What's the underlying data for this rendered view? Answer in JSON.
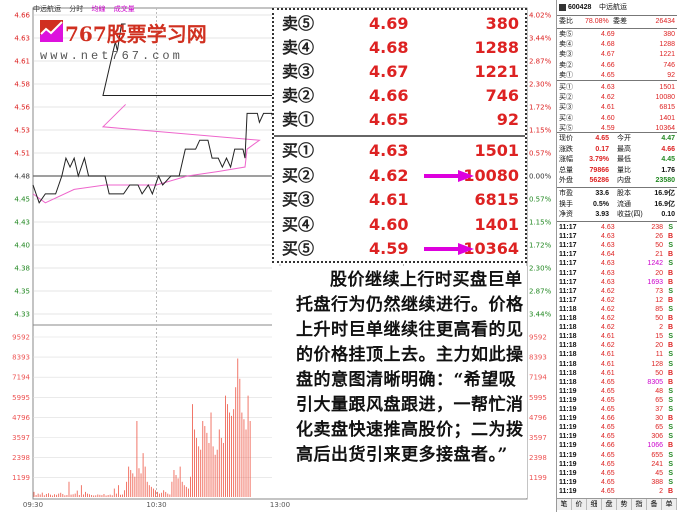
{
  "header": {
    "stock_name": "中远航运",
    "tabs": [
      "分时",
      "均線",
      "成交量"
    ]
  },
  "logo": {
    "name": "767股票学习网",
    "url": "www.net767.com"
  },
  "price_axis": {
    "left": [
      "4.66",
      "4.63",
      "4.61",
      "4.58",
      "4.56",
      "4.53",
      "4.51",
      "4.48",
      "4.45",
      "4.43",
      "4.40",
      "4.38",
      "4.35",
      "4.33"
    ],
    "right": [
      "4.02%",
      "3.44%",
      "2.87%",
      "2.30%",
      "1.72%",
      "1.15%",
      "0.57%",
      "0.00%",
      "0.57%",
      "1.15%",
      "1.72%",
      "2.30%",
      "2.87%",
      "3.44%"
    ]
  },
  "volume_axis": [
    "9592",
    "8393",
    "7194",
    "5995",
    "4796",
    "3597",
    "2398",
    "1199"
  ],
  "time_axis": [
    "09:30",
    "10:30",
    "13:00"
  ],
  "colors": {
    "price_line": "#222222",
    "avg_line": "#ee66cc",
    "up": "#dd2222",
    "down": "#228822",
    "arrow": "#dd00dd",
    "volume": "#ee5544"
  },
  "chart_data": {
    "type": "line",
    "x_range": [
      "09:30",
      "15:00"
    ],
    "ylim": [
      4.33,
      4.66
    ],
    "price": [
      [
        "09:30",
        4.47
      ],
      [
        "09:33",
        4.45
      ],
      [
        "09:36",
        4.46
      ],
      [
        "09:41",
        4.46
      ],
      [
        "09:44",
        4.48
      ],
      [
        "09:46",
        4.5
      ],
      [
        "09:48",
        4.49
      ],
      [
        "09:50",
        4.5
      ],
      [
        "09:52",
        4.48
      ],
      [
        "09:55",
        4.5
      ],
      [
        "09:57",
        4.48
      ],
      [
        "10:05",
        4.48
      ],
      [
        "10:07",
        4.46
      ],
      [
        "10:14",
        4.46
      ],
      [
        "10:17",
        4.47
      ],
      [
        "10:21",
        4.47
      ],
      [
        "10:23",
        4.46
      ],
      [
        "10:26",
        4.47
      ],
      [
        "10:28",
        4.46
      ],
      [
        "10:31",
        4.48
      ],
      [
        "10:33",
        4.47
      ],
      [
        "10:37",
        4.48
      ],
      [
        "10:41",
        4.48
      ],
      [
        "10:44",
        4.51
      ],
      [
        "10:49",
        4.51
      ],
      [
        "10:51",
        4.52
      ],
      [
        "10:55",
        4.52
      ],
      [
        "10:57",
        4.5
      ],
      [
        "11:00",
        4.5
      ],
      [
        "11:02",
        4.49
      ],
      [
        "11:04",
        4.5
      ],
      [
        "11:06",
        4.49
      ],
      [
        "11:08",
        4.51
      ],
      [
        "11:12",
        4.51
      ],
      [
        "11:13",
        4.5
      ],
      [
        "11:14",
        4.55
      ],
      [
        "11:19",
        4.55
      ],
      [
        "11:20",
        4.54
      ],
      [
        "11:22",
        4.55
      ],
      [
        "11:26",
        4.55
      ],
      [
        "11:27",
        4.54
      ],
      [
        "11:29",
        4.57
      ],
      [
        "11:34",
        4.57
      ],
      [
        "11:37",
        4.6
      ],
      [
        "11:40",
        4.63
      ],
      [
        "11:41",
        4.62
      ],
      [
        "11:43",
        4.65
      ],
      [
        "11:45",
        4.65
      ]
    ],
    "average": [
      [
        "09:30",
        4.46
      ],
      [
        "09:36",
        4.45
      ],
      [
        "09:50",
        4.465
      ],
      [
        "10:05",
        4.47
      ],
      [
        "10:30",
        4.47
      ],
      [
        "10:45",
        4.48
      ],
      [
        "11:00",
        4.485
      ],
      [
        "11:13",
        4.49
      ],
      [
        "11:14",
        4.51
      ],
      [
        "11:20",
        4.52
      ],
      [
        "11:34",
        4.535
      ],
      [
        "11:45",
        4.56
      ]
    ],
    "volume": [
      300,
      120,
      200,
      150,
      260,
      100,
      180,
      220,
      140,
      90,
      160,
      130,
      200,
      250,
      180,
      100,
      120,
      900,
      140,
      160,
      200,
      380,
      120,
      700,
      150,
      300,
      200,
      160,
      120,
      90,
      100,
      150,
      130,
      110,
      180,
      90,
      120,
      140,
      100,
      500,
      200,
      700,
      130,
      150,
      400,
      900,
      1800,
      1600,
      1400,
      1200,
      4500,
      1700,
      1400,
      2600,
      1800,
      900,
      700,
      600,
      500,
      400,
      300,
      200,
      250,
      400,
      300,
      200,
      150,
      900,
      1600,
      1300,
      1100,
      1800,
      900,
      700,
      600,
      500,
      1200,
      5500,
      4000,
      3500,
      3000,
      2800,
      4500,
      4200,
      3800,
      3200,
      5000,
      3000,
      2500,
      2800,
      4000,
      3500,
      3200,
      6000,
      5500,
      5000,
      4800,
      5200,
      6500,
      8200,
      7000,
      5000,
      4600,
      4000,
      6000,
      4500
    ]
  },
  "order_book": {
    "sell": [
      {
        "label": "卖⑤",
        "price": "4.69",
        "vol": "380"
      },
      {
        "label": "卖④",
        "price": "4.68",
        "vol": "1288"
      },
      {
        "label": "卖③",
        "price": "4.67",
        "vol": "1221"
      },
      {
        "label": "卖②",
        "price": "4.66",
        "vol": "746"
      },
      {
        "label": "卖①",
        "price": "4.65",
        "vol": "92"
      }
    ],
    "buy": [
      {
        "label": "买①",
        "price": "4.63",
        "vol": "1501"
      },
      {
        "label": "买②",
        "price": "4.62",
        "vol": "10080",
        "arrow": true
      },
      {
        "label": "买③",
        "price": "4.61",
        "vol": "6815"
      },
      {
        "label": "买④",
        "price": "4.60",
        "vol": "1401"
      },
      {
        "label": "买⑤",
        "price": "4.59",
        "vol": "10364",
        "arrow": true
      }
    ]
  },
  "note": "股价继续上行时买盘巨单托盘行为仍然继续进行。价格上升时巨单继续往更高看的见的价格挂顶上去。主力如此操盘的意图清晰明确：“希望吸引大量跟风盘跟进，一帮忙消化卖盘快速推高股价；二为拨高后出货引来更多接盘者。”",
  "panel": {
    "code": "600428",
    "name": "中远航运",
    "ratio": {
      "label": "委比",
      "value": "78.08%",
      "diff_label": "委差",
      "diff": "26434"
    },
    "stats": [
      [
        {
          "t": "现价",
          "c": "k"
        },
        {
          "t": "4.65",
          "c": "r"
        },
        {
          "t": "今开",
          "c": "k"
        },
        {
          "t": "4.47",
          "c": "g"
        }
      ],
      [
        {
          "t": "涨跌",
          "c": "k"
        },
        {
          "t": "0.17",
          "c": "r"
        },
        {
          "t": "最高",
          "c": "k"
        },
        {
          "t": "4.66",
          "c": "r"
        }
      ],
      [
        {
          "t": "涨幅",
          "c": "k"
        },
        {
          "t": "3.79%",
          "c": "r"
        },
        {
          "t": "最低",
          "c": "k"
        },
        {
          "t": "4.45",
          "c": "g"
        }
      ],
      [
        {
          "t": "总量",
          "c": "k"
        },
        {
          "t": "79866",
          "c": "r"
        },
        {
          "t": "量比",
          "c": "k"
        },
        {
          "t": "1.76",
          "c": "k"
        }
      ],
      [
        {
          "t": "外盘",
          "c": "k"
        },
        {
          "t": "56286",
          "c": "r"
        },
        {
          "t": "内盘",
          "c": "k"
        },
        {
          "t": "23580",
          "c": "g"
        }
      ]
    ],
    "stats2": [
      [
        {
          "t": "市盈",
          "c": "k"
        },
        {
          "t": "33.6",
          "c": "k"
        },
        {
          "t": "股本",
          "c": "k"
        },
        {
          "t": "16.9亿",
          "c": "k"
        }
      ],
      [
        {
          "t": "换手",
          "c": "k"
        },
        {
          "t": "0.5%",
          "c": "k"
        },
        {
          "t": "流通",
          "c": "k"
        },
        {
          "t": "16.9亿",
          "c": "k"
        }
      ],
      [
        {
          "t": "净资",
          "c": "k"
        },
        {
          "t": "3.93",
          "c": "k"
        },
        {
          "t": "收益(四)",
          "c": "k"
        },
        {
          "t": "0.10",
          "c": "k"
        }
      ]
    ],
    "ticks": [
      [
        "11:17",
        "4.63",
        "238",
        "S"
      ],
      [
        "11:17",
        "4.63",
        "26",
        "B"
      ],
      [
        "11:17",
        "4.63",
        "50",
        "S"
      ],
      [
        "11:17",
        "4.64",
        "21",
        "B"
      ],
      [
        "11:17",
        "4.63",
        "1242",
        "S"
      ],
      [
        "11:17",
        "4.63",
        "20",
        "B"
      ],
      [
        "11:17",
        "4.63",
        "1693",
        "B"
      ],
      [
        "11:17",
        "4.62",
        "73",
        "S"
      ],
      [
        "11:17",
        "4.62",
        "12",
        "B"
      ],
      [
        "11:18",
        "4.62",
        "85",
        "S"
      ],
      [
        "11:18",
        "4.62",
        "50",
        "B"
      ],
      [
        "11:18",
        "4.62",
        "2",
        "B"
      ],
      [
        "11:18",
        "4.61",
        "15",
        "S"
      ],
      [
        "11:18",
        "4.62",
        "20",
        "B"
      ],
      [
        "11:18",
        "4.61",
        "11",
        "S"
      ],
      [
        "11:18",
        "4.61",
        "128",
        "S"
      ],
      [
        "11:18",
        "4.61",
        "50",
        "B"
      ],
      [
        "11:18",
        "4.65",
        "8305",
        "B"
      ],
      [
        "11:19",
        "4.65",
        "48",
        "S"
      ],
      [
        "11:19",
        "4.65",
        "65",
        "S"
      ],
      [
        "11:19",
        "4.65",
        "37",
        "S"
      ],
      [
        "11:19",
        "4.66",
        "30",
        "B"
      ],
      [
        "11:19",
        "4.65",
        "65",
        "S"
      ],
      [
        "11:19",
        "4.65",
        "306",
        "S"
      ],
      [
        "11:19",
        "4.66",
        "1066",
        "B"
      ],
      [
        "11:19",
        "4.65",
        "655",
        "S"
      ],
      [
        "11:19",
        "4.65",
        "241",
        "S"
      ],
      [
        "11:19",
        "4.65",
        "45",
        "S"
      ],
      [
        "11:19",
        "4.65",
        "388",
        "S"
      ],
      [
        "11:19",
        "4.65",
        "2",
        "B"
      ]
    ],
    "bottom_tabs": [
      "笔",
      "价",
      "细",
      "盘",
      "势",
      "指",
      "备",
      "单"
    ]
  }
}
